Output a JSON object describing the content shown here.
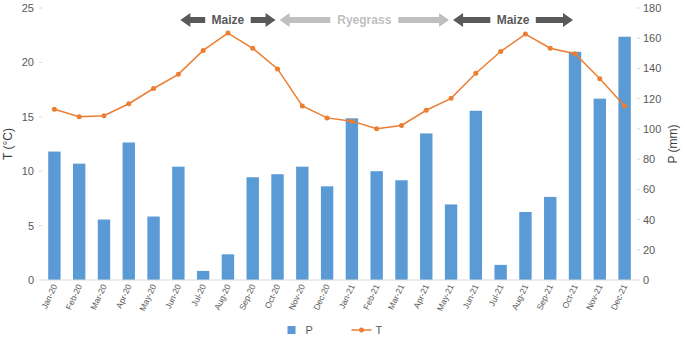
{
  "chart_data": {
    "type": "bar",
    "categories": [
      "Jan-20",
      "Feb-20",
      "Mar-20",
      "Apr-20",
      "May-20",
      "Jun-20",
      "Jul-20",
      "Aug-20",
      "Sep-20",
      "Oct-20",
      "Nov-20",
      "Dec-20",
      "Jan-21",
      "Feb-21",
      "Mar-21",
      "Apr-21",
      "May-21",
      "Jun-21",
      "Jul-21",
      "Aug-21",
      "Sep-21",
      "Oct-21",
      "Nov-21",
      "Dec-21"
    ],
    "series": [
      {
        "name": "P",
        "type": "bar",
        "axis": "y2",
        "color": "#5b9bd5",
        "values": [
          85,
          77,
          40,
          91,
          42,
          75,
          6,
          17,
          68,
          70,
          75,
          62,
          107,
          72,
          66,
          97,
          50,
          112,
          10,
          45,
          55,
          151,
          120,
          161
        ]
      },
      {
        "name": "T",
        "type": "line",
        "color": "#ed7d31",
        "marker": "circle",
        "values": [
          15.7,
          15.0,
          15.1,
          16.2,
          17.6,
          18.9,
          21.1,
          22.7,
          21.3,
          19.4,
          16.0,
          14.9,
          14.6,
          13.9,
          14.2,
          15.6,
          16.7,
          19.0,
          21.0,
          22.6,
          21.3,
          20.8,
          18.5,
          16.0
        ]
      }
    ],
    "ylabel": "T (°C)",
    "y2label": "P (mm)",
    "ylim": [
      0,
      25
    ],
    "yticks": [
      0,
      5,
      10,
      15,
      20,
      25
    ],
    "y2lim": [
      0,
      180
    ],
    "y2ticks": [
      0,
      20,
      40,
      60,
      80,
      100,
      120,
      140,
      160,
      180
    ],
    "grid": false,
    "legend": "bottom",
    "annotations": [
      {
        "text": "Maize",
        "from": "Jun-20",
        "to": "Oct-20",
        "color": "#595959"
      },
      {
        "text": "Ryegrass",
        "from": "Oct-20",
        "to": "May-21",
        "color": "#bfbfbf"
      },
      {
        "text": "Maize",
        "from": "May-21",
        "to": "Oct-21",
        "color": "#595959"
      }
    ]
  }
}
